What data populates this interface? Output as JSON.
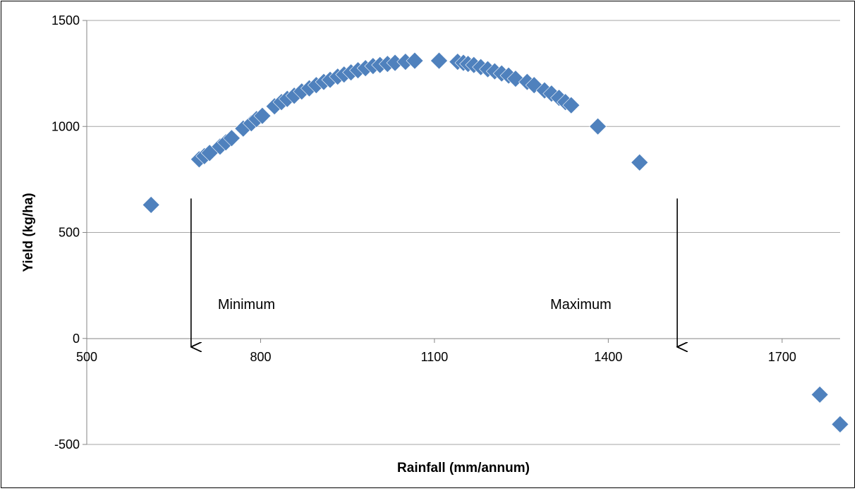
{
  "chart_data": {
    "type": "scatter",
    "title": "",
    "xlabel": "Rainfall (mm/annum)",
    "ylabel": "Yield (kg/ha)",
    "xlim": [
      500,
      1800
    ],
    "ylim": [
      -500,
      1500
    ],
    "x_ticks": [
      500,
      800,
      1100,
      1400,
      1700
    ],
    "y_ticks": [
      -500,
      0,
      500,
      1000,
      1500
    ],
    "grid": "horizontal",
    "legend": "none",
    "marker": "diamond",
    "marker_color": "#4f81bd",
    "series": [
      {
        "points": [
          [
            611,
            630
          ],
          [
            694,
            845
          ],
          [
            703,
            860
          ],
          [
            712,
            875
          ],
          [
            730,
            905
          ],
          [
            740,
            925
          ],
          [
            750,
            945
          ],
          [
            770,
            990
          ],
          [
            784,
            1015
          ],
          [
            793,
            1035
          ],
          [
            803,
            1050
          ],
          [
            824,
            1095
          ],
          [
            836,
            1115
          ],
          [
            846,
            1130
          ],
          [
            858,
            1145
          ],
          [
            871,
            1165
          ],
          [
            884,
            1180
          ],
          [
            896,
            1195
          ],
          [
            909,
            1210
          ],
          [
            920,
            1220
          ],
          [
            933,
            1235
          ],
          [
            944,
            1245
          ],
          [
            956,
            1255
          ],
          [
            968,
            1265
          ],
          [
            981,
            1275
          ],
          [
            994,
            1285
          ],
          [
            1006,
            1290
          ],
          [
            1019,
            1295
          ],
          [
            1032,
            1300
          ],
          [
            1050,
            1305
          ],
          [
            1066,
            1310
          ],
          [
            1108,
            1310
          ],
          [
            1140,
            1305
          ],
          [
            1150,
            1300
          ],
          [
            1158,
            1295
          ],
          [
            1168,
            1290
          ],
          [
            1180,
            1280
          ],
          [
            1192,
            1270
          ],
          [
            1204,
            1260
          ],
          [
            1216,
            1250
          ],
          [
            1228,
            1240
          ],
          [
            1240,
            1225
          ],
          [
            1260,
            1210
          ],
          [
            1272,
            1195
          ],
          [
            1290,
            1170
          ],
          [
            1302,
            1155
          ],
          [
            1315,
            1135
          ],
          [
            1326,
            1115
          ],
          [
            1336,
            1100
          ],
          [
            1382,
            1000
          ],
          [
            1454,
            830
          ],
          [
            1765,
            -265
          ],
          [
            1800,
            -405
          ]
        ]
      }
    ],
    "annotations": [
      {
        "label": "Minimum",
        "x": 680,
        "y_from": 660,
        "y_to": -40
      },
      {
        "label": "Maximum",
        "x": 1519,
        "y_from": 660,
        "y_to": -40
      }
    ]
  }
}
